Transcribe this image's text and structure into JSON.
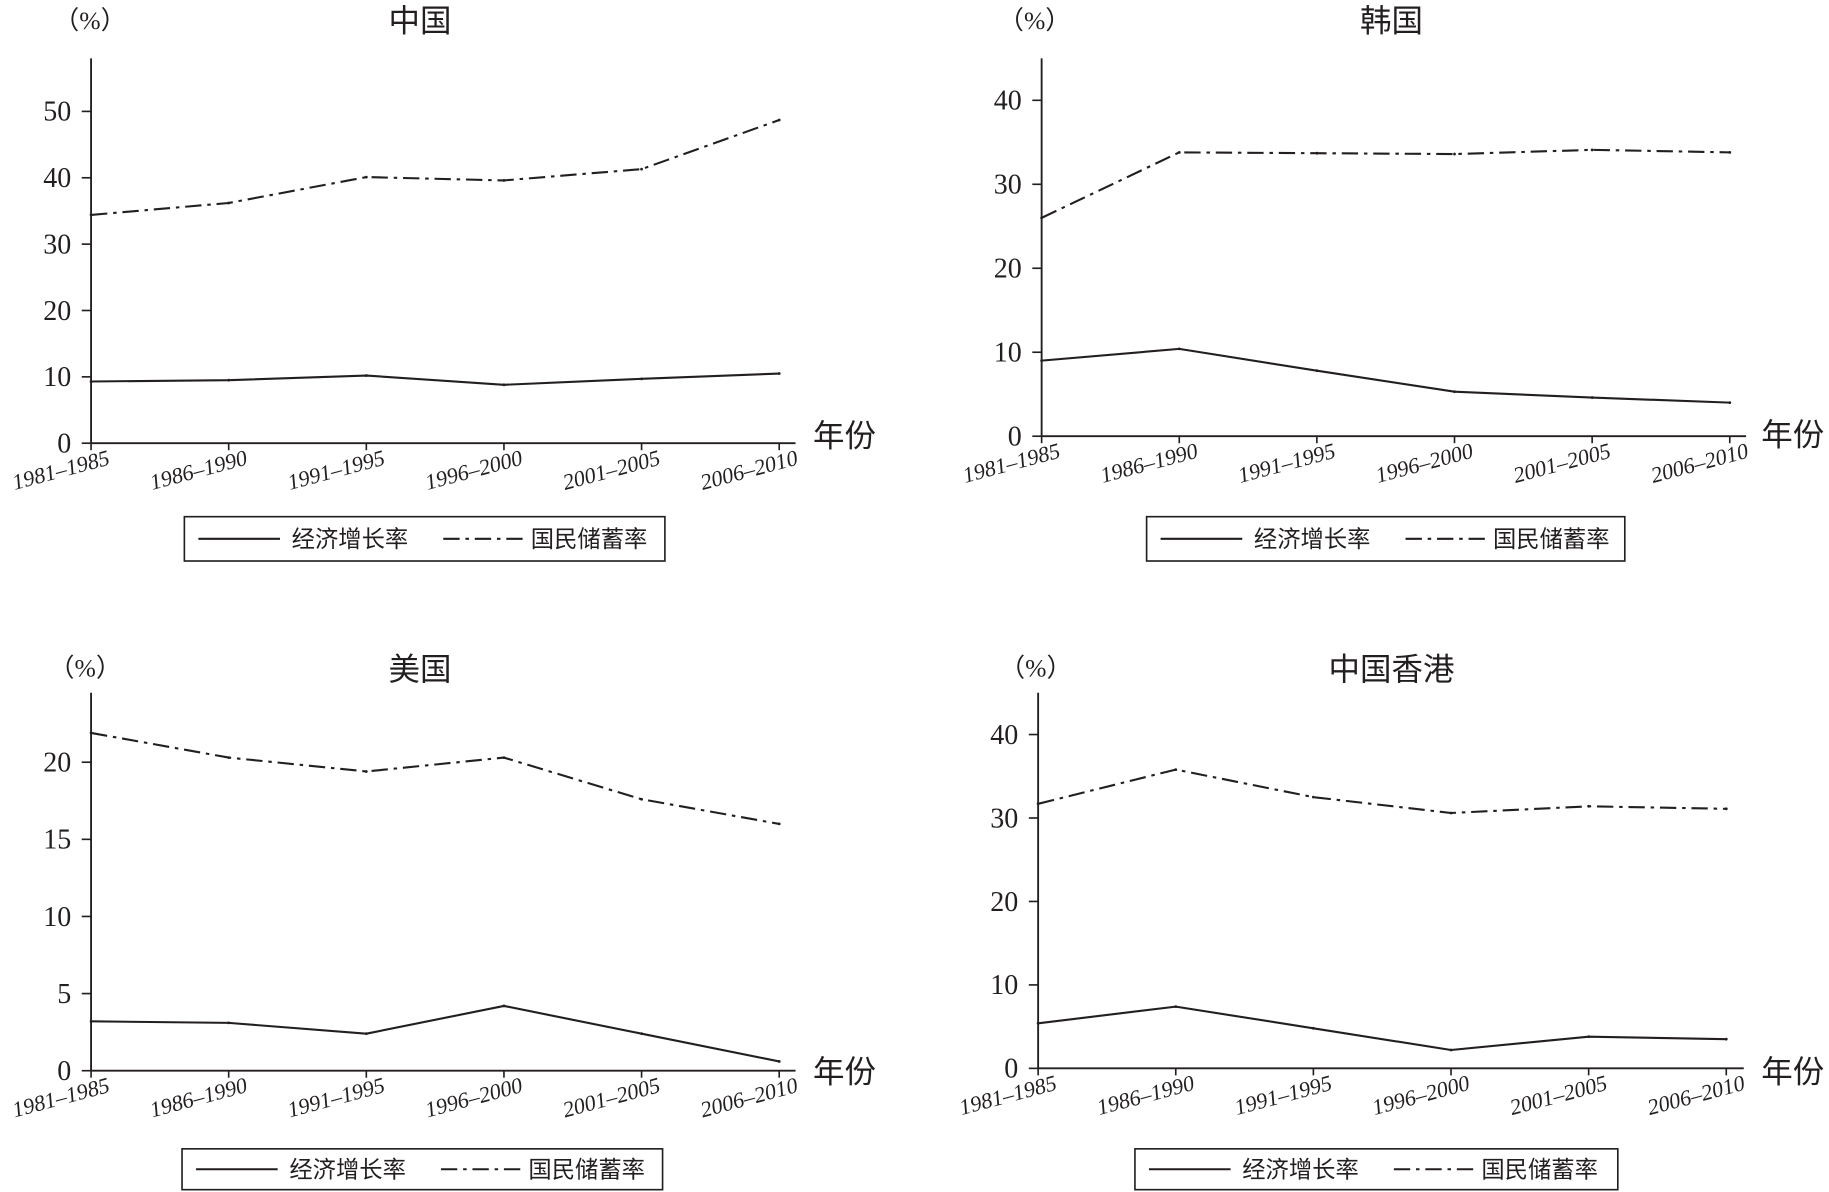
{
  "colors": {
    "line": "#231f20",
    "background": "#ffffff"
  },
  "chart_data": [
    {
      "type": "line",
      "title": "中国",
      "ylabel": "（%）",
      "xlabel": "年份",
      "categories": [
        "1981–1985",
        "1986–1990",
        "1991–1995",
        "1996–2000",
        "2001–2005",
        "2006–2010"
      ],
      "yticks": [
        0,
        10,
        20,
        30,
        40,
        50
      ],
      "ylim": [
        0,
        58
      ],
      "grid": false,
      "legend": "bottom",
      "series": [
        {
          "name": "经济增长率",
          "style": "solid",
          "values": [
            9.3,
            9.5,
            10.2,
            8.8,
            9.7,
            10.5
          ]
        },
        {
          "name": "国民储蓄率",
          "style": "dash-dot",
          "values": [
            34.4,
            36.2,
            40.1,
            39.6,
            41.3,
            48.7
          ]
        }
      ]
    },
    {
      "type": "line",
      "title": "韩国",
      "ylabel": "（%）",
      "xlabel": "年份",
      "categories": [
        "1981–1985",
        "1986–1990",
        "1991–1995",
        "1996–2000",
        "2001–2005",
        "2006–2010"
      ],
      "yticks": [
        0,
        10,
        20,
        30,
        40
      ],
      "ylim": [
        0,
        45
      ],
      "grid": false,
      "legend": "bottom",
      "series": [
        {
          "name": "经济增长率",
          "style": "solid",
          "values": [
            9.0,
            10.4,
            7.8,
            5.3,
            4.6,
            4.0
          ]
        },
        {
          "name": "国民储蓄率",
          "style": "dash-dot",
          "values": [
            26.0,
            33.8,
            33.7,
            33.6,
            34.1,
            33.8
          ]
        }
      ]
    },
    {
      "type": "line",
      "title": "美国",
      "ylabel": "（%）",
      "xlabel": "年份",
      "categories": [
        "1981–1985",
        "1986–1990",
        "1991–1995",
        "1996–2000",
        "2001–2005",
        "2006–2010"
      ],
      "yticks": [
        0,
        5,
        10,
        15,
        20
      ],
      "ylim": [
        0,
        24.5
      ],
      "grid": false,
      "legend": "bottom",
      "series": [
        {
          "name": "经济增长率",
          "style": "solid",
          "values": [
            3.2,
            3.1,
            2.4,
            4.2,
            2.4,
            0.6
          ]
        },
        {
          "name": "国民储蓄率",
          "style": "dash-dot",
          "values": [
            21.9,
            20.3,
            19.4,
            20.3,
            17.6,
            16.0
          ]
        }
      ]
    },
    {
      "type": "line",
      "title": "中国香港",
      "ylabel": "（%）",
      "xlabel": "年份",
      "categories": [
        "1981–1985",
        "1986–1990",
        "1991–1995",
        "1996–2000",
        "2001–2005",
        "2006–2010"
      ],
      "yticks": [
        0,
        10,
        20,
        30,
        40
      ],
      "ylim": [
        0,
        45
      ],
      "grid": false,
      "legend": "bottom",
      "series": [
        {
          "name": "经济增长率",
          "style": "solid",
          "values": [
            5.4,
            7.4,
            4.8,
            2.2,
            3.8,
            3.5
          ]
        },
        {
          "name": "国民储蓄率",
          "style": "dash-dot",
          "values": [
            31.7,
            35.8,
            32.5,
            30.6,
            31.4,
            31.1
          ]
        }
      ]
    }
  ]
}
